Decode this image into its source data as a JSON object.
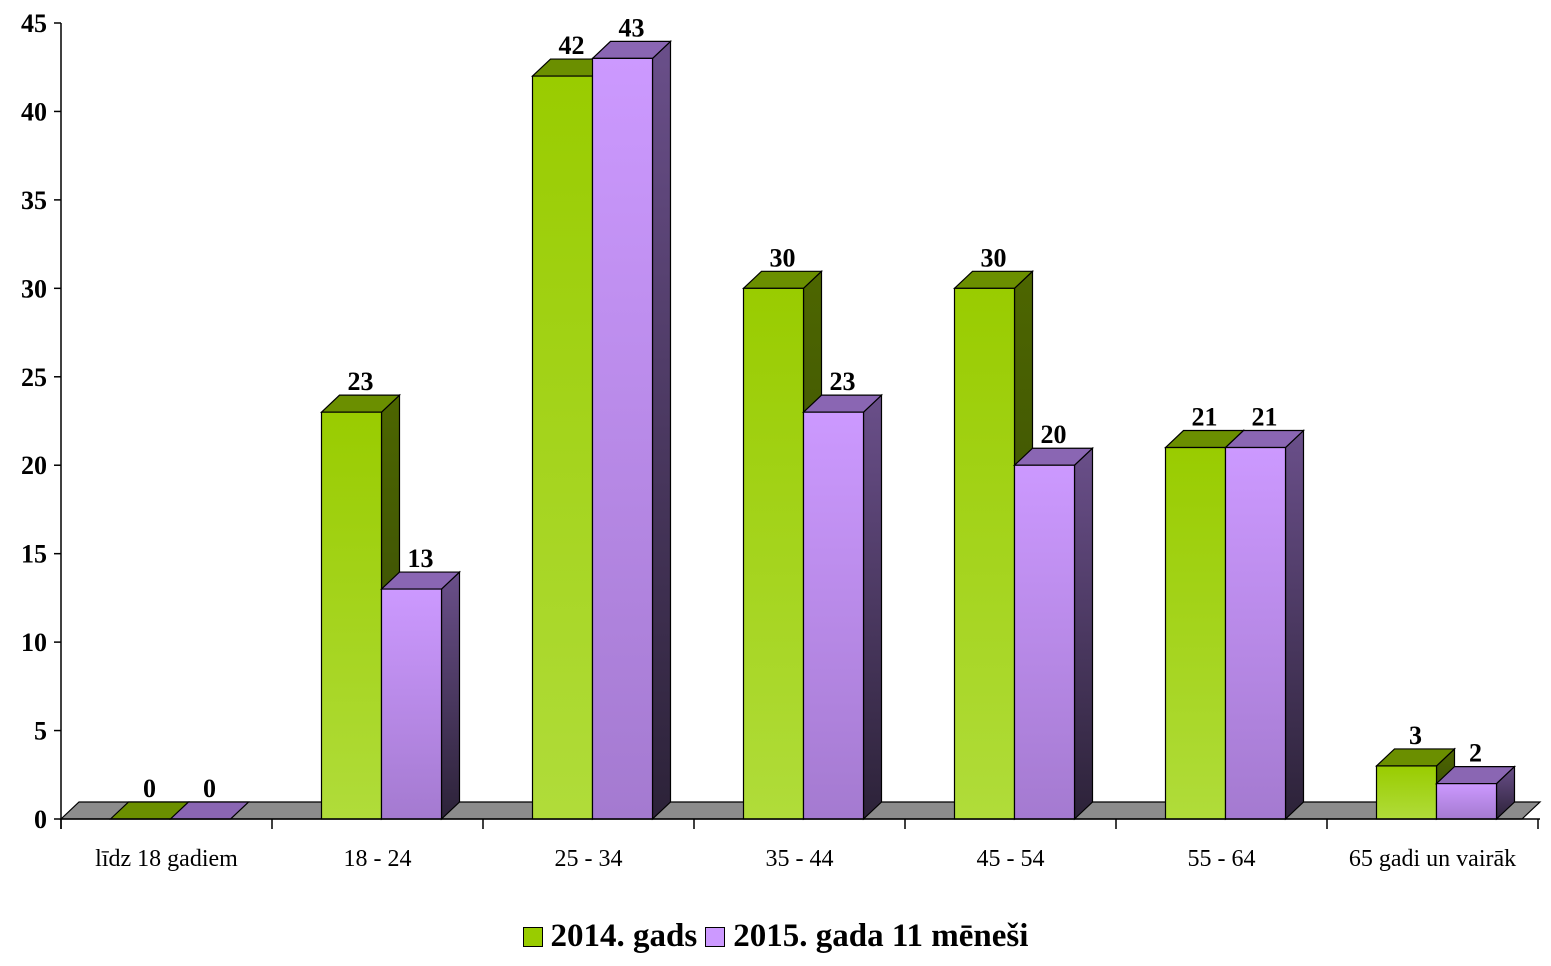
{
  "chart_data": {
    "type": "bar",
    "categories": [
      "līdz 18 gadiem",
      "18 - 24",
      "25 - 34",
      "35 - 44",
      "45 - 54",
      "55 - 64",
      "65 gadi un vairāk"
    ],
    "series": [
      {
        "name": "2014. gads",
        "values": [
          0,
          23,
          42,
          30,
          30,
          21,
          3
        ],
        "color": "#99cc00"
      },
      {
        "name": "2015. gada 11 mēneši",
        "values": [
          0,
          13,
          43,
          23,
          20,
          21,
          2
        ],
        "color": "#cc99ff"
      }
    ],
    "ylim": [
      0,
      45
    ],
    "yticks": [
      "0",
      "5",
      "10",
      "15",
      "20",
      "25",
      "30",
      "35",
      "40",
      "45"
    ],
    "grid": false,
    "legend_position": "bottom",
    "style": "3d-clustered-column"
  }
}
